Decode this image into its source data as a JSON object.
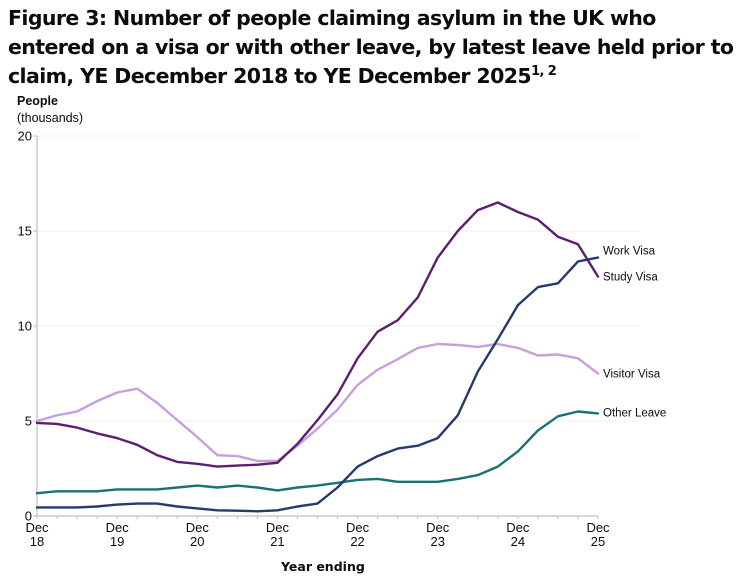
{
  "title": {
    "text": "Figure 3: Number of people claiming asylum in the UK who entered on a visa or with other leave, by latest leave held prior to claim, YE December 2018 to YE December 2025",
    "footnote_marker": "1, 2"
  },
  "colors": {
    "study_visa": "#5c1f6e",
    "work_visa": "#243b6b",
    "visitor_visa": "#c89fdc",
    "other_leave": "#1a7272",
    "axis": "#bfbfbf",
    "gridline": "#f0f0f0"
  },
  "chart_data": {
    "type": "line",
    "title": "Figure 3: Number of people claiming asylum in the UK who entered on a visa or with other leave, by latest leave held prior to claim, YE December 2018 to YE December 2025",
    "ylabel": "People",
    "ylabel_sub": "(thousands)",
    "xlabel": "Year ending",
    "ylim": [
      0,
      20
    ],
    "yticks": [
      0,
      5,
      10,
      15,
      20
    ],
    "grid": true,
    "legend": "inline-right",
    "x": [
      "Dec 18",
      "Mar 19",
      "Jun 19",
      "Sep 19",
      "Dec 19",
      "Mar 20",
      "Jun 20",
      "Sep 20",
      "Dec 20",
      "Mar 21",
      "Jun 21",
      "Sep 21",
      "Dec 21",
      "Mar 22",
      "Jun 22",
      "Sep 22",
      "Dec 22",
      "Mar 23",
      "Jun 23",
      "Sep 23",
      "Dec 23",
      "Mar 24",
      "Jun 24",
      "Sep 24",
      "Dec 24",
      "Mar 25",
      "Jun 25",
      "Sep 25",
      "Dec 25"
    ],
    "xtick_labels": [
      {
        "index": 0,
        "line1": "Dec",
        "line2": "18"
      },
      {
        "index": 4,
        "line1": "Dec",
        "line2": "19"
      },
      {
        "index": 8,
        "line1": "Dec",
        "line2": "20"
      },
      {
        "index": 12,
        "line1": "Dec",
        "line2": "21"
      },
      {
        "index": 16,
        "line1": "Dec",
        "line2": "22"
      },
      {
        "index": 20,
        "line1": "Dec",
        "line2": "23"
      },
      {
        "index": 24,
        "line1": "Dec",
        "line2": "24"
      },
      {
        "index": 28,
        "line1": "Dec",
        "line2": "25"
      }
    ],
    "series": [
      {
        "key": "work_visa",
        "name": "Work Visa",
        "values": [
          0.45,
          0.45,
          0.45,
          0.5,
          0.6,
          0.65,
          0.65,
          0.5,
          0.4,
          0.3,
          0.28,
          0.25,
          0.3,
          0.5,
          0.65,
          1.5,
          2.6,
          3.15,
          3.55,
          3.7,
          4.1,
          5.3,
          7.6,
          9.3,
          11.1,
          12.05,
          12.25,
          13.4,
          13.6
        ]
      },
      {
        "key": "study_visa",
        "name": "Study Visa",
        "values": [
          4.9,
          4.85,
          4.65,
          4.35,
          4.1,
          3.75,
          3.2,
          2.85,
          2.75,
          2.6,
          2.65,
          2.7,
          2.8,
          3.8,
          5.05,
          6.4,
          8.3,
          9.7,
          10.3,
          11.5,
          13.6,
          15.0,
          16.1,
          16.5,
          16.0,
          15.6,
          14.7,
          14.3,
          12.6
        ]
      },
      {
        "key": "visitor_visa",
        "name": "Visitor Visa",
        "values": [
          5.0,
          5.3,
          5.5,
          6.05,
          6.5,
          6.7,
          5.95,
          5.05,
          4.15,
          3.2,
          3.15,
          2.9,
          2.9,
          3.7,
          4.6,
          5.6,
          6.9,
          7.7,
          8.25,
          8.85,
          9.05,
          9.0,
          8.9,
          9.05,
          8.85,
          8.45,
          8.5,
          8.3,
          7.5
        ]
      },
      {
        "key": "other_leave",
        "name": "Other Leave",
        "values": [
          1.2,
          1.3,
          1.3,
          1.3,
          1.4,
          1.4,
          1.4,
          1.5,
          1.6,
          1.5,
          1.6,
          1.5,
          1.35,
          1.5,
          1.6,
          1.75,
          1.9,
          1.95,
          1.8,
          1.8,
          1.8,
          1.95,
          2.15,
          2.6,
          3.4,
          4.5,
          5.25,
          5.5,
          5.4
        ]
      }
    ]
  }
}
